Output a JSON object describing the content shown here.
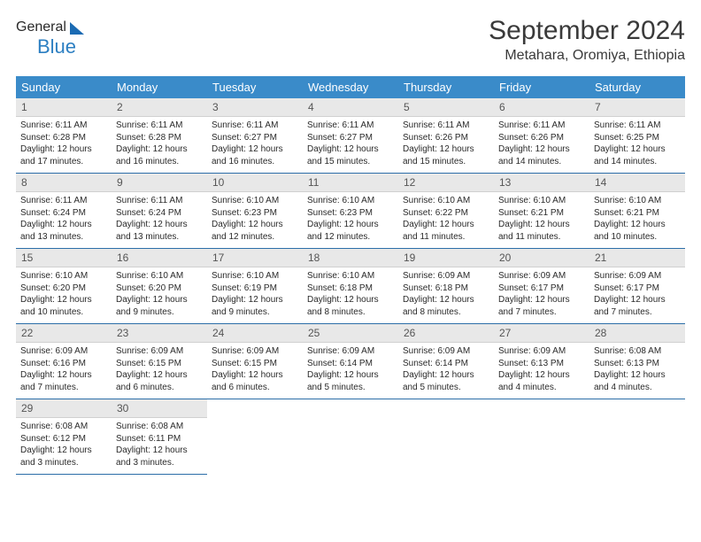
{
  "logo": {
    "part1": "General",
    "part2": "Blue"
  },
  "header": {
    "month": "September 2024",
    "location": "Metahara, Oromiya, Ethiopia"
  },
  "dayHeaders": [
    "Sunday",
    "Monday",
    "Tuesday",
    "Wednesday",
    "Thursday",
    "Friday",
    "Saturday"
  ],
  "styling": {
    "header_bg": "#3a8bc9",
    "header_text_color": "#ffffff",
    "daynum_bg": "#e8e8e8",
    "row_divider_color": "#2c6ea8",
    "body_font_size": 10,
    "header_font_size": 13,
    "month_font_size": 30,
    "location_font_size": 16
  },
  "weeks": [
    [
      {
        "n": "1",
        "sunrise": "6:11 AM",
        "sunset": "6:28 PM",
        "daylight": "12 hours and 17 minutes."
      },
      {
        "n": "2",
        "sunrise": "6:11 AM",
        "sunset": "6:28 PM",
        "daylight": "12 hours and 16 minutes."
      },
      {
        "n": "3",
        "sunrise": "6:11 AM",
        "sunset": "6:27 PM",
        "daylight": "12 hours and 16 minutes."
      },
      {
        "n": "4",
        "sunrise": "6:11 AM",
        "sunset": "6:27 PM",
        "daylight": "12 hours and 15 minutes."
      },
      {
        "n": "5",
        "sunrise": "6:11 AM",
        "sunset": "6:26 PM",
        "daylight": "12 hours and 15 minutes."
      },
      {
        "n": "6",
        "sunrise": "6:11 AM",
        "sunset": "6:26 PM",
        "daylight": "12 hours and 14 minutes."
      },
      {
        "n": "7",
        "sunrise": "6:11 AM",
        "sunset": "6:25 PM",
        "daylight": "12 hours and 14 minutes."
      }
    ],
    [
      {
        "n": "8",
        "sunrise": "6:11 AM",
        "sunset": "6:24 PM",
        "daylight": "12 hours and 13 minutes."
      },
      {
        "n": "9",
        "sunrise": "6:11 AM",
        "sunset": "6:24 PM",
        "daylight": "12 hours and 13 minutes."
      },
      {
        "n": "10",
        "sunrise": "6:10 AM",
        "sunset": "6:23 PM",
        "daylight": "12 hours and 12 minutes."
      },
      {
        "n": "11",
        "sunrise": "6:10 AM",
        "sunset": "6:23 PM",
        "daylight": "12 hours and 12 minutes."
      },
      {
        "n": "12",
        "sunrise": "6:10 AM",
        "sunset": "6:22 PM",
        "daylight": "12 hours and 11 minutes."
      },
      {
        "n": "13",
        "sunrise": "6:10 AM",
        "sunset": "6:21 PM",
        "daylight": "12 hours and 11 minutes."
      },
      {
        "n": "14",
        "sunrise": "6:10 AM",
        "sunset": "6:21 PM",
        "daylight": "12 hours and 10 minutes."
      }
    ],
    [
      {
        "n": "15",
        "sunrise": "6:10 AM",
        "sunset": "6:20 PM",
        "daylight": "12 hours and 10 minutes."
      },
      {
        "n": "16",
        "sunrise": "6:10 AM",
        "sunset": "6:20 PM",
        "daylight": "12 hours and 9 minutes."
      },
      {
        "n": "17",
        "sunrise": "6:10 AM",
        "sunset": "6:19 PM",
        "daylight": "12 hours and 9 minutes."
      },
      {
        "n": "18",
        "sunrise": "6:10 AM",
        "sunset": "6:18 PM",
        "daylight": "12 hours and 8 minutes."
      },
      {
        "n": "19",
        "sunrise": "6:09 AM",
        "sunset": "6:18 PM",
        "daylight": "12 hours and 8 minutes."
      },
      {
        "n": "20",
        "sunrise": "6:09 AM",
        "sunset": "6:17 PM",
        "daylight": "12 hours and 7 minutes."
      },
      {
        "n": "21",
        "sunrise": "6:09 AM",
        "sunset": "6:17 PM",
        "daylight": "12 hours and 7 minutes."
      }
    ],
    [
      {
        "n": "22",
        "sunrise": "6:09 AM",
        "sunset": "6:16 PM",
        "daylight": "12 hours and 7 minutes."
      },
      {
        "n": "23",
        "sunrise": "6:09 AM",
        "sunset": "6:15 PM",
        "daylight": "12 hours and 6 minutes."
      },
      {
        "n": "24",
        "sunrise": "6:09 AM",
        "sunset": "6:15 PM",
        "daylight": "12 hours and 6 minutes."
      },
      {
        "n": "25",
        "sunrise": "6:09 AM",
        "sunset": "6:14 PM",
        "daylight": "12 hours and 5 minutes."
      },
      {
        "n": "26",
        "sunrise": "6:09 AM",
        "sunset": "6:14 PM",
        "daylight": "12 hours and 5 minutes."
      },
      {
        "n": "27",
        "sunrise": "6:09 AM",
        "sunset": "6:13 PM",
        "daylight": "12 hours and 4 minutes."
      },
      {
        "n": "28",
        "sunrise": "6:08 AM",
        "sunset": "6:13 PM",
        "daylight": "12 hours and 4 minutes."
      }
    ],
    [
      {
        "n": "29",
        "sunrise": "6:08 AM",
        "sunset": "6:12 PM",
        "daylight": "12 hours and 3 minutes."
      },
      {
        "n": "30",
        "sunrise": "6:08 AM",
        "sunset": "6:11 PM",
        "daylight": "12 hours and 3 minutes."
      },
      null,
      null,
      null,
      null,
      null
    ]
  ]
}
